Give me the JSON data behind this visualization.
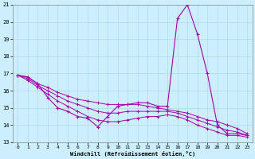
{
  "xlabel": "Windchill (Refroidissement éolien,°C)",
  "background_color": "#cceeff",
  "grid_color": "#aadddd",
  "line_color": "#aa00aa",
  "xlim": [
    -0.5,
    23.5
  ],
  "ylim": [
    13,
    21
  ],
  "yticks": [
    13,
    14,
    15,
    16,
    17,
    18,
    19,
    20,
    21
  ],
  "xticks": [
    0,
    1,
    2,
    3,
    4,
    5,
    6,
    7,
    8,
    9,
    10,
    11,
    12,
    13,
    14,
    15,
    16,
    17,
    18,
    19,
    20,
    21,
    22,
    23
  ],
  "series": {
    "main": [
      16.9,
      16.8,
      16.4,
      15.6,
      15.0,
      14.8,
      14.5,
      14.4,
      13.9,
      14.5,
      15.1,
      15.2,
      15.3,
      15.3,
      15.1,
      15.1,
      20.2,
      21.0,
      19.3,
      17.0,
      14.0,
      13.5,
      13.5,
      13.4
    ],
    "upper": [
      16.9,
      16.8,
      16.4,
      16.2,
      15.9,
      15.7,
      15.5,
      15.4,
      15.3,
      15.2,
      15.2,
      15.2,
      15.2,
      15.1,
      15.0,
      14.9,
      14.8,
      14.7,
      14.5,
      14.3,
      14.2,
      14.0,
      13.8,
      13.5
    ],
    "lower": [
      16.9,
      16.6,
      16.2,
      15.8,
      15.4,
      15.1,
      14.8,
      14.5,
      14.3,
      14.2,
      14.2,
      14.3,
      14.4,
      14.5,
      14.5,
      14.6,
      14.5,
      14.3,
      14.0,
      13.8,
      13.6,
      13.4,
      13.4,
      13.3
    ],
    "mid": [
      16.9,
      16.7,
      16.3,
      16.0,
      15.7,
      15.4,
      15.2,
      15.0,
      14.8,
      14.7,
      14.7,
      14.8,
      14.8,
      14.8,
      14.8,
      14.8,
      14.7,
      14.5,
      14.3,
      14.1,
      13.9,
      13.7,
      13.6,
      13.4
    ]
  }
}
